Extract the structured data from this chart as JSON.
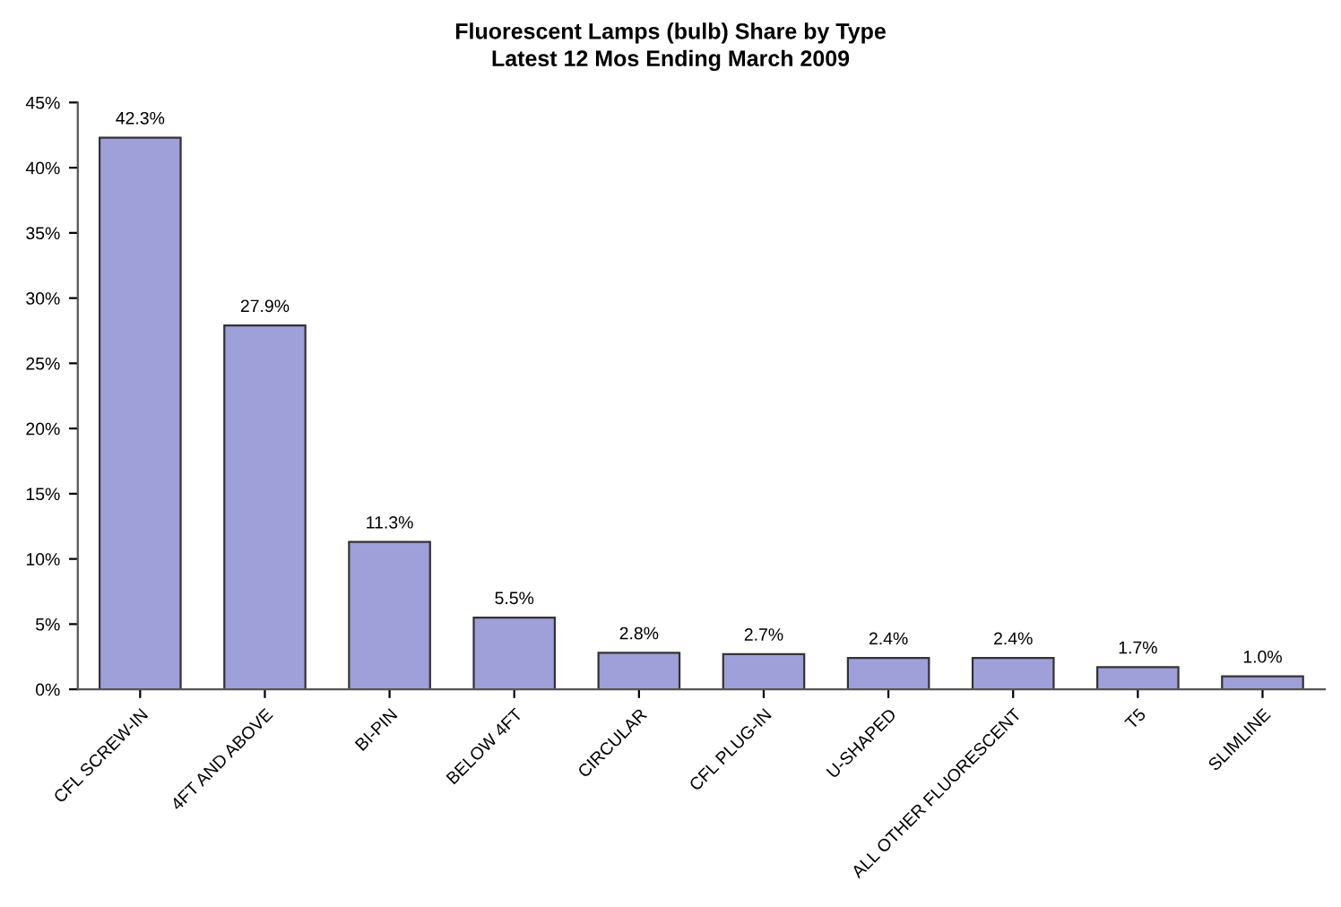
{
  "chart_data": {
    "type": "bar",
    "title": "Fluorescent Lamps (bulb) Share by Type",
    "subtitle": "Latest 12 Mos Ending March 2009",
    "categories": [
      "CFL SCREW-IN",
      "4FT AND ABOVE",
      "BI-PIN",
      "BELOW 4FT",
      "CIRCULAR",
      "CFL PLUG-IN",
      "U-SHAPED",
      "ALL OTHER FLUORESCENT",
      "T5",
      "SLIMLINE"
    ],
    "values": [
      42.3,
      27.9,
      11.3,
      5.5,
      2.8,
      2.7,
      2.4,
      2.4,
      1.7,
      1.0
    ],
    "value_labels": [
      "42.3%",
      "27.9%",
      "11.3%",
      "5.5%",
      "2.8%",
      "2.7%",
      "2.4%",
      "2.4%",
      "1.7%",
      "1.0%"
    ],
    "color": "#9f9fd9",
    "ylim": [
      0,
      45
    ],
    "yticks": [
      {
        "value": 0,
        "label": "0%"
      },
      {
        "value": 5,
        "label": "5%"
      },
      {
        "value": 10,
        "label": "10%"
      },
      {
        "value": 15,
        "label": "15%"
      },
      {
        "value": 20,
        "label": "20%"
      },
      {
        "value": 25,
        "label": "25%"
      },
      {
        "value": 30,
        "label": "30%"
      },
      {
        "value": 35,
        "label": "35%"
      },
      {
        "value": 40,
        "label": "40%"
      },
      {
        "value": 45,
        "label": "45%"
      }
    ],
    "grid": false,
    "legend": false
  }
}
